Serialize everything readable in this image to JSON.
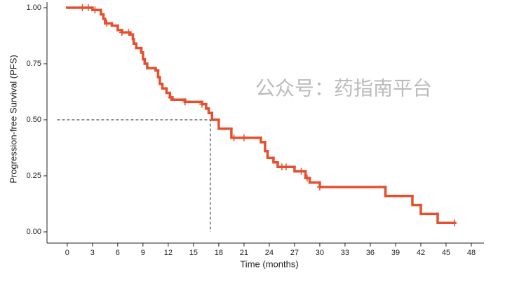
{
  "chart_data": {
    "type": "line",
    "step": true,
    "xlabel": "Time (months)",
    "ylabel": "Progression-free Survival (PFS)",
    "watermark": "公众号：药指南平台",
    "x": [
      0,
      3,
      4,
      4.3,
      4.5,
      5.3,
      6,
      6.5,
      7.5,
      7.8,
      7.9,
      8.2,
      8.8,
      9,
      9.2,
      9.5,
      10.5,
      10.8,
      11,
      11.3,
      11.8,
      12.2,
      12.5,
      14,
      16,
      16.5,
      16.8,
      17.2,
      18,
      19.5,
      23,
      23.5,
      23.8,
      24.5,
      25,
      27,
      28.3,
      28.8,
      30,
      37.8,
      41,
      42,
      44,
      46
    ],
    "series": [
      {
        "color": "#e4502e",
        "values": [
          1.0,
          0.99,
          0.97,
          0.95,
          0.93,
          0.92,
          0.9,
          0.89,
          0.88,
          0.86,
          0.84,
          0.82,
          0.8,
          0.77,
          0.75,
          0.73,
          0.72,
          0.69,
          0.66,
          0.64,
          0.62,
          0.6,
          0.59,
          0.58,
          0.57,
          0.55,
          0.53,
          0.5,
          0.46,
          0.42,
          0.4,
          0.36,
          0.33,
          0.31,
          0.29,
          0.27,
          0.24,
          0.22,
          0.2,
          0.16,
          0.12,
          0.08,
          0.04,
          0.04
        ]
      }
    ],
    "censored": {
      "x": [
        1.8,
        2.5,
        3.3,
        4.7,
        6.5,
        7.3,
        12.3,
        14,
        16,
        19.8,
        21,
        25.5,
        26,
        27.8,
        28.5,
        30,
        46
      ],
      "values": [
        1.0,
        1.0,
        0.99,
        0.93,
        0.89,
        0.89,
        0.6,
        0.58,
        0.57,
        0.42,
        0.42,
        0.29,
        0.29,
        0.27,
        0.24,
        0.2,
        0.04
      ]
    },
    "median": {
      "x": 17,
      "y": 0.5
    },
    "xlim": [
      -2.4,
      49.5
    ],
    "ylim": [
      -0.05,
      1.025
    ],
    "xticks": [
      0,
      3,
      6,
      9,
      12,
      15,
      18,
      21,
      24,
      27,
      30,
      33,
      36,
      39,
      42,
      45,
      48
    ],
    "yticks": [
      {
        "value": 0,
        "label": "0.00"
      },
      {
        "value": 0.25,
        "label": "0.25"
      },
      {
        "value": 0.5,
        "label": "0.50"
      },
      {
        "value": 0.75,
        "label": "0.75"
      },
      {
        "value": 1,
        "label": "1.00"
      }
    ]
  }
}
